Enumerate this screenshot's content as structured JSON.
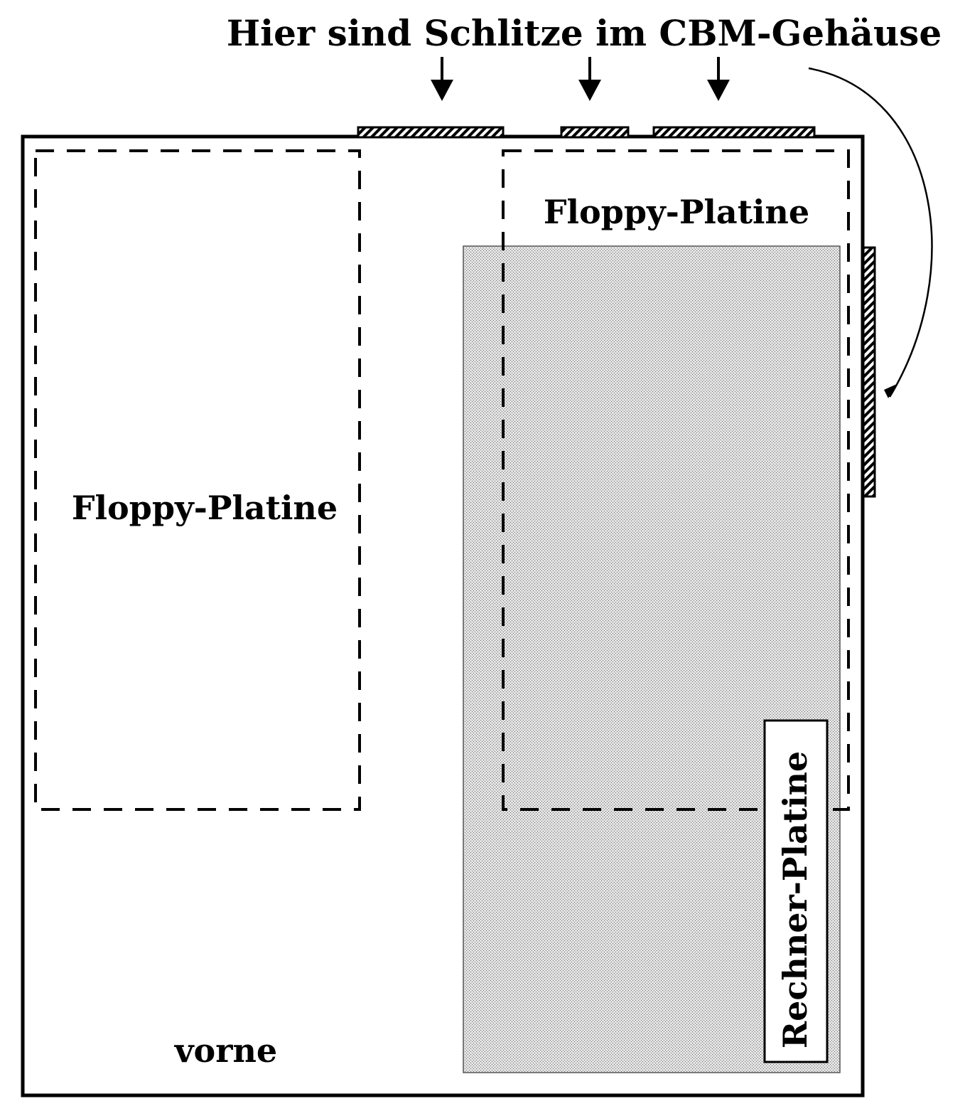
{
  "caption": "Hier sind Schlitze im CBM-Gehäuse",
  "labels": {
    "floppy_left": "Floppy-Platine",
    "floppy_right": "Floppy-Platine",
    "rechner": "Rechner-Platine",
    "front": "vorne"
  },
  "colors": {
    "ink": "#000000",
    "paper": "#ffffff",
    "board_fill": "#cfcfcf"
  }
}
